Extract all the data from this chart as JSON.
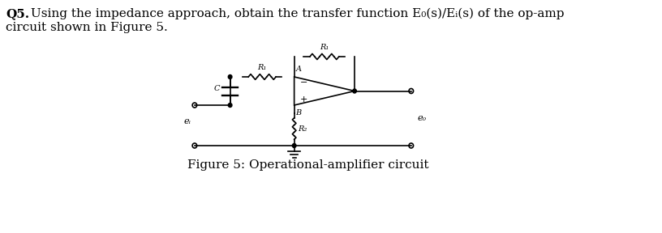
{
  "background_color": "#ffffff",
  "line_color": "#000000",
  "font_size_title": 11,
  "font_size_caption": 11,
  "label_R1_top": "R₁",
  "label_R1_left": "R₁",
  "label_R2": "R₂",
  "label_C": "C",
  "label_A": "A",
  "label_B": "B",
  "label_ei": "eᵢ",
  "label_eo": "e₀",
  "figure_caption": "Figure 5: Operational-amplifier circuit",
  "q5_bold": "Q5.",
  "q5_rest": " Using the impedance approach, obtain the transfer function E₀(s)/Eᵢ(s) of the op-amp",
  "q5_line2": "circuit shown in Figure 5."
}
